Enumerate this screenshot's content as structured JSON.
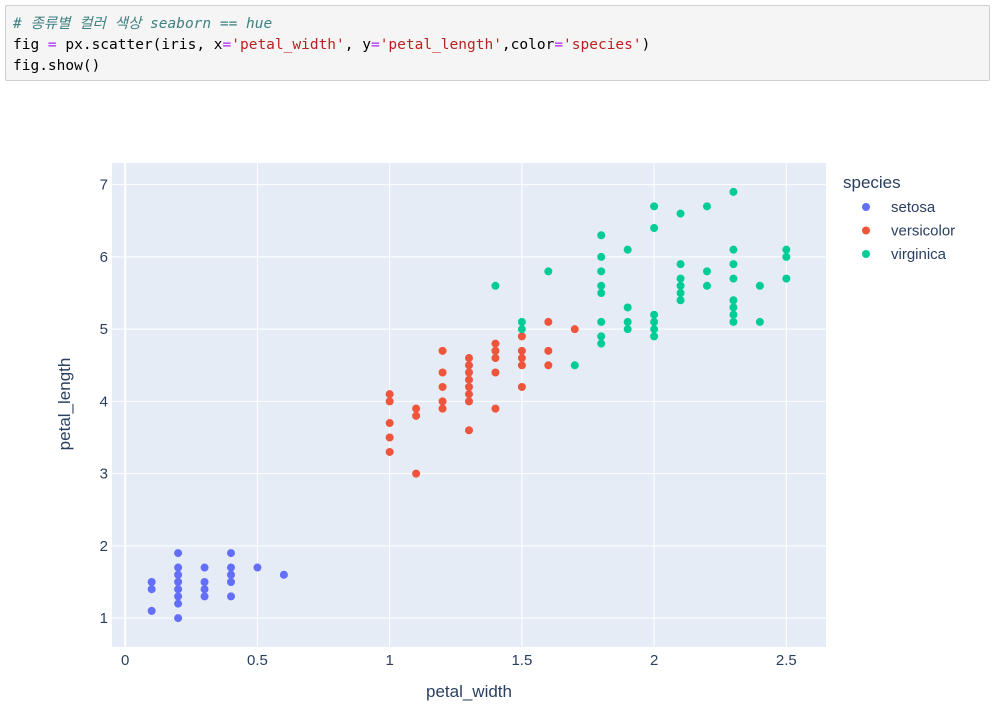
{
  "code_cell": {
    "lines": [
      [
        {
          "t": "# 종류별 컬러 색상 seaborn == hue",
          "c": "comment"
        }
      ],
      [
        {
          "t": "fig ",
          "c": "plain"
        },
        {
          "t": "=",
          "c": "op"
        },
        {
          "t": " px.scatter(iris, x",
          "c": "plain"
        },
        {
          "t": "=",
          "c": "op"
        },
        {
          "t": "'petal_width'",
          "c": "str"
        },
        {
          "t": ", y",
          "c": "plain"
        },
        {
          "t": "=",
          "c": "op"
        },
        {
          "t": "'petal_length'",
          "c": "str"
        },
        {
          "t": ",color",
          "c": "plain"
        },
        {
          "t": "=",
          "c": "op"
        },
        {
          "t": "'species'",
          "c": "str"
        },
        {
          "t": ")",
          "c": "plain"
        }
      ],
      [
        {
          "t": "fig.show()",
          "c": "plain"
        }
      ]
    ]
  },
  "chart_data": {
    "type": "scatter",
    "title": "",
    "xlabel": "petal_width",
    "ylabel": "petal_length",
    "xlim": [
      -0.05,
      2.65
    ],
    "ylim": [
      0.6,
      7.3
    ],
    "xticks": [
      0,
      0.5,
      1,
      1.5,
      2,
      2.5
    ],
    "xtick_labels": [
      "0",
      "0.5",
      "1",
      "1.5",
      "2",
      "2.5"
    ],
    "yticks": [
      1,
      2,
      3,
      4,
      5,
      6,
      7
    ],
    "ytick_labels": [
      "1",
      "2",
      "3",
      "4",
      "5",
      "6",
      "7"
    ],
    "grid": true,
    "plot_background": "#e5ecf6",
    "legend": {
      "title": "species",
      "position": "right"
    },
    "series": [
      {
        "name": "setosa",
        "color": "#636efa",
        "points": [
          [
            0.1,
            1.5
          ],
          [
            0.1,
            1.4
          ],
          [
            0.1,
            1.1
          ],
          [
            0.2,
            1.9
          ],
          [
            0.2,
            1.7
          ],
          [
            0.2,
            1.6
          ],
          [
            0.2,
            1.5
          ],
          [
            0.2,
            1.4
          ],
          [
            0.2,
            1.3
          ],
          [
            0.2,
            1.2
          ],
          [
            0.2,
            1.0
          ],
          [
            0.3,
            1.7
          ],
          [
            0.3,
            1.5
          ],
          [
            0.3,
            1.4
          ],
          [
            0.3,
            1.3
          ],
          [
            0.4,
            1.9
          ],
          [
            0.4,
            1.7
          ],
          [
            0.4,
            1.6
          ],
          [
            0.4,
            1.5
          ],
          [
            0.4,
            1.3
          ],
          [
            0.5,
            1.7
          ],
          [
            0.6,
            1.6
          ]
        ]
      },
      {
        "name": "versicolor",
        "color": "#ef553b",
        "points": [
          [
            1.0,
            4.1
          ],
          [
            1.0,
            4.0
          ],
          [
            1.0,
            3.7
          ],
          [
            1.0,
            3.5
          ],
          [
            1.0,
            3.3
          ],
          [
            1.1,
            3.9
          ],
          [
            1.1,
            3.8
          ],
          [
            1.1,
            3.0
          ],
          [
            1.2,
            4.7
          ],
          [
            1.2,
            4.4
          ],
          [
            1.2,
            4.2
          ],
          [
            1.2,
            4.0
          ],
          [
            1.2,
            3.9
          ],
          [
            1.3,
            4.6
          ],
          [
            1.3,
            4.5
          ],
          [
            1.3,
            4.4
          ],
          [
            1.3,
            4.3
          ],
          [
            1.3,
            4.2
          ],
          [
            1.3,
            4.1
          ],
          [
            1.3,
            4.0
          ],
          [
            1.3,
            3.6
          ],
          [
            1.4,
            4.8
          ],
          [
            1.4,
            4.7
          ],
          [
            1.4,
            4.6
          ],
          [
            1.4,
            4.4
          ],
          [
            1.4,
            3.9
          ],
          [
            1.5,
            4.9
          ],
          [
            1.5,
            4.7
          ],
          [
            1.5,
            4.6
          ],
          [
            1.5,
            4.5
          ],
          [
            1.5,
            4.2
          ],
          [
            1.6,
            5.1
          ],
          [
            1.6,
            4.7
          ],
          [
            1.6,
            4.5
          ],
          [
            1.7,
            5.0
          ]
        ]
      },
      {
        "name": "virginica",
        "color": "#00cc96",
        "points": [
          [
            1.4,
            5.6
          ],
          [
            1.5,
            5.1
          ],
          [
            1.5,
            5.0
          ],
          [
            1.6,
            5.8
          ],
          [
            1.7,
            4.5
          ],
          [
            1.8,
            6.3
          ],
          [
            1.8,
            6.0
          ],
          [
            1.8,
            5.8
          ],
          [
            1.8,
            5.6
          ],
          [
            1.8,
            5.5
          ],
          [
            1.8,
            5.1
          ],
          [
            1.8,
            4.9
          ],
          [
            1.8,
            4.8
          ],
          [
            1.9,
            6.1
          ],
          [
            1.9,
            5.3
          ],
          [
            1.9,
            5.1
          ],
          [
            1.9,
            5.0
          ],
          [
            2.0,
            6.7
          ],
          [
            2.0,
            6.4
          ],
          [
            2.0,
            5.2
          ],
          [
            2.0,
            5.1
          ],
          [
            2.0,
            5.0
          ],
          [
            2.0,
            4.9
          ],
          [
            2.1,
            6.6
          ],
          [
            2.1,
            5.9
          ],
          [
            2.1,
            5.7
          ],
          [
            2.1,
            5.6
          ],
          [
            2.1,
            5.5
          ],
          [
            2.1,
            5.4
          ],
          [
            2.2,
            6.7
          ],
          [
            2.2,
            5.8
          ],
          [
            2.2,
            5.6
          ],
          [
            2.3,
            6.9
          ],
          [
            2.3,
            6.1
          ],
          [
            2.3,
            5.9
          ],
          [
            2.3,
            5.7
          ],
          [
            2.3,
            5.4
          ],
          [
            2.3,
            5.3
          ],
          [
            2.3,
            5.2
          ],
          [
            2.3,
            5.1
          ],
          [
            2.4,
            5.6
          ],
          [
            2.4,
            5.1
          ],
          [
            2.5,
            6.1
          ],
          [
            2.5,
            6.0
          ],
          [
            2.5,
            5.7
          ]
        ]
      }
    ]
  }
}
